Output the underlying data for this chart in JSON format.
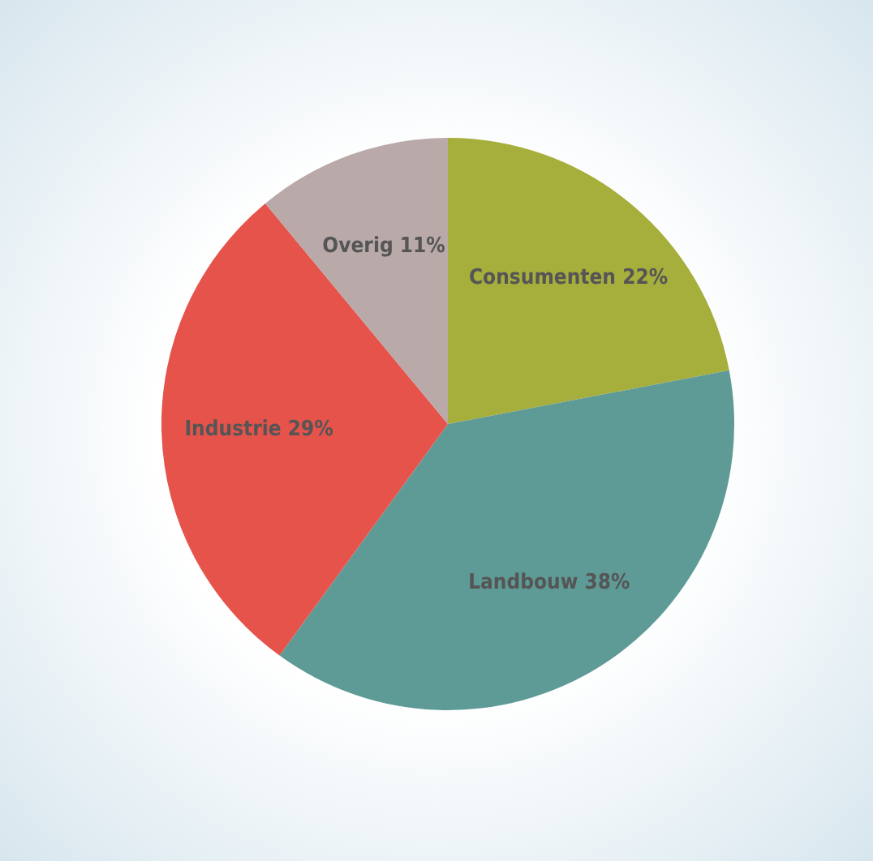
{
  "chart_data": {
    "type": "pie",
    "categories": [
      "Consumenten",
      "Landbouw",
      "Industrie",
      "Overig"
    ],
    "values": [
      22,
      38,
      29,
      11
    ],
    "value_labels": [
      "22%",
      "38%",
      "29%",
      "11%"
    ],
    "colors": [
      "#a6ae3c",
      "#5f9b96",
      "#e5534b",
      "#b9a9a9"
    ]
  }
}
